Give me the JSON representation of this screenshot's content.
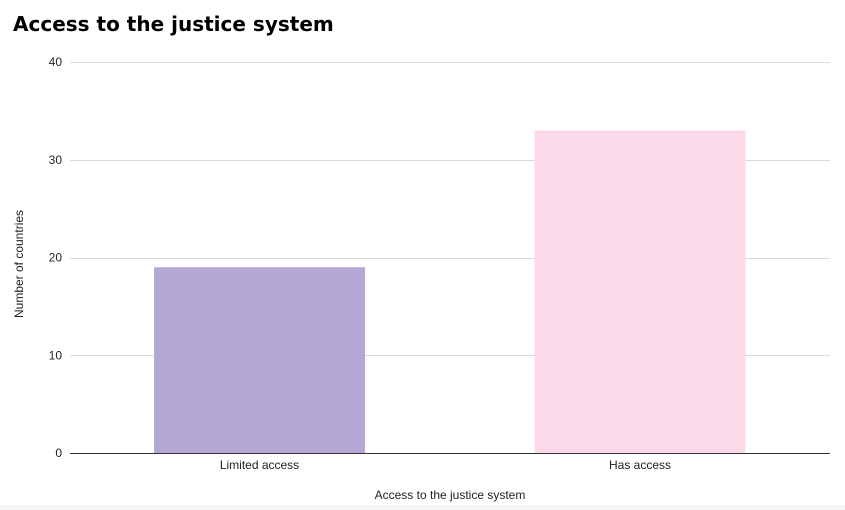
{
  "chart_data": {
    "type": "bar",
    "title": "Access to the justice system",
    "xlabel": "Access to the justice system",
    "ylabel": "Number of countries",
    "categories": [
      "Limited access",
      "Has access"
    ],
    "values": [
      19,
      33
    ],
    "colors": [
      "#b4a7d6",
      "#fcdaea"
    ],
    "ylim": [
      0,
      40
    ],
    "yticks": [
      0,
      10,
      20,
      30,
      40
    ],
    "grid": true,
    "legend": "none"
  },
  "colors": {
    "gridline": "#d9d9d9",
    "baseline": "#333333",
    "text": "#222222"
  }
}
